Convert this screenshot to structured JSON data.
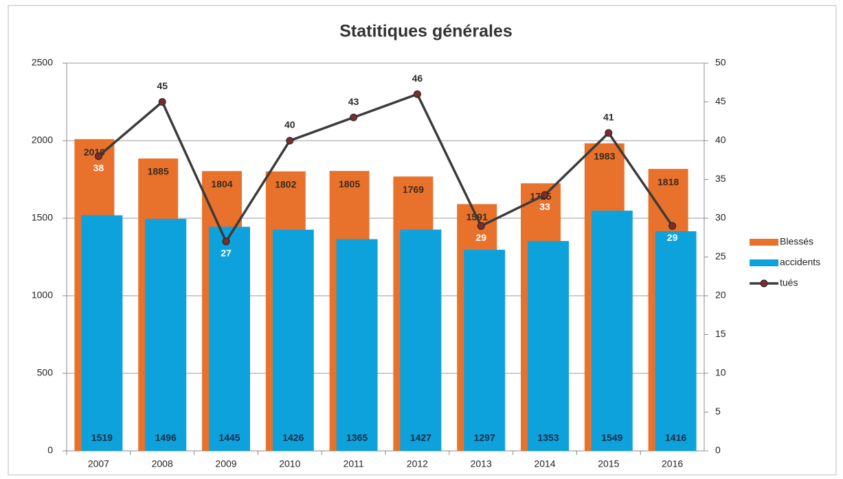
{
  "chart_data": {
    "type": "bar_line",
    "title": "Statitiques générales",
    "categories": [
      "2007",
      "2008",
      "2009",
      "2010",
      "2011",
      "2012",
      "2013",
      "2014",
      "2015",
      "2016"
    ],
    "series": [
      {
        "name": "Blessés",
        "type": "bar",
        "color": "#e8722c",
        "values": [
          2010,
          1885,
          1804,
          1802,
          1805,
          1769,
          1591,
          1725,
          1983,
          1818
        ]
      },
      {
        "name": "accidents",
        "type": "bar",
        "color": "#0ea2dc",
        "values": [
          1519,
          1496,
          1445,
          1426,
          1365,
          1427,
          1297,
          1353,
          1549,
          1416
        ]
      },
      {
        "name": "tués",
        "type": "line",
        "axis": "y2",
        "color": "#3b3b3b",
        "marker_color": "#7b2d2d",
        "values": [
          38,
          45,
          27,
          40,
          43,
          46,
          29,
          33,
          41,
          29
        ]
      }
    ],
    "ylim": [
      0,
      2500
    ],
    "yticks": [
      0,
      500,
      1000,
      1500,
      2000,
      2500
    ],
    "y2lim": [
      0,
      50
    ],
    "y2ticks": [
      0,
      5,
      10,
      15,
      20,
      25,
      30,
      35,
      40,
      45,
      50
    ],
    "grid": true,
    "legend": "right"
  }
}
